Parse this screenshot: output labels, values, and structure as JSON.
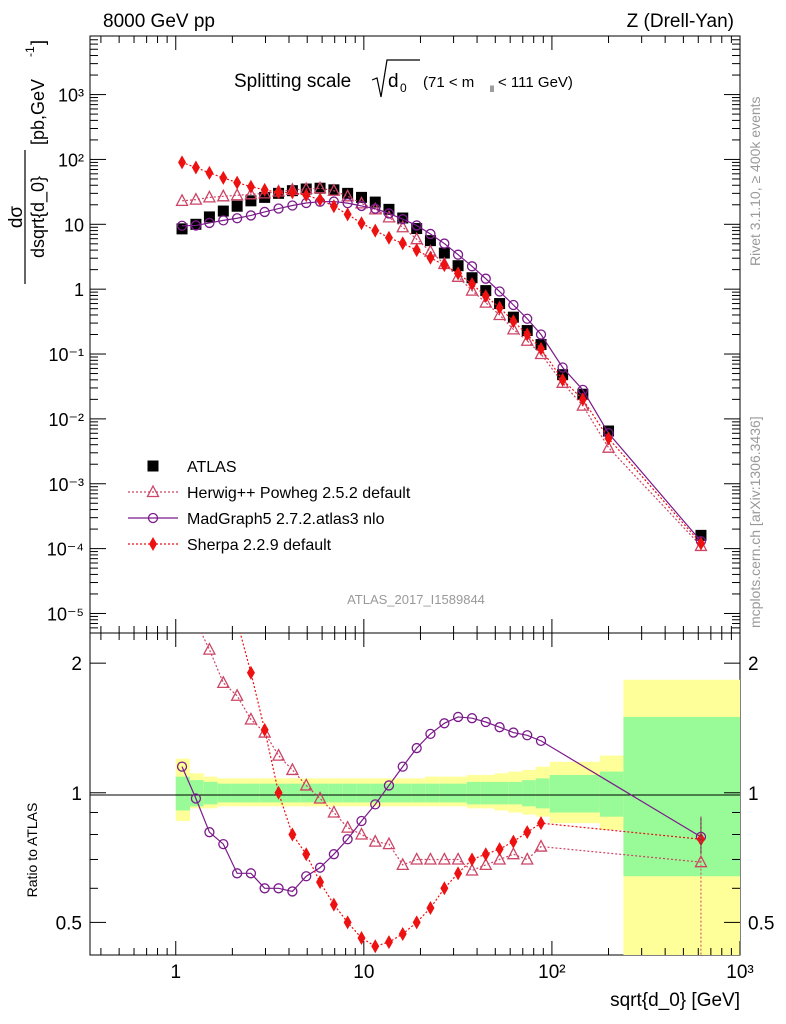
{
  "header": {
    "left": "8000 GeV pp",
    "right": "Z (Drell-Yan)"
  },
  "side": {
    "rivet": "Rivet 3.1.10, ≥ 400k events",
    "mcplots": "mcplots.cern.ch [arXiv:1306.3436]"
  },
  "plot_title": {
    "main": "Splitting scale",
    "sub": "d",
    "sub0": "0",
    "range": "(71 < m",
    "rangesub": "ll",
    "range2": " < 111 GeV)"
  },
  "analysis_id": "ATLAS_2017_I1589844",
  "ylabel_top": {
    "num": "dσ",
    "den": "dsqrt{d_0}",
    "unit": "[pb,GeV",
    "unitsup": "-1",
    "close": "]"
  },
  "ylabel_bottom": "Ratio to ATLAS",
  "xlabel": "sqrt{d_0} [GeV]",
  "legend": [
    {
      "label": "ATLAS",
      "color": "#000000",
      "marker": "square"
    },
    {
      "label": "Herwig++ Powheg 2.5.2 default",
      "color": "#cc4466",
      "marker": "triangle"
    },
    {
      "label": "MadGraph5 2.7.2.atlas3 nlo",
      "color": "#7b1a8a",
      "marker": "circle"
    },
    {
      "label": "Sherpa 2.2.9 default",
      "color": "#ee1111",
      "marker": "diamond"
    }
  ],
  "chart_data": {
    "type": "line",
    "x_scale": "log",
    "y_scale_top": "log",
    "xlim": [
      0.35,
      1000
    ],
    "ylim_top": [
      5e-06,
      8000
    ],
    "ylim_bottom": [
      0.42,
      2.35
    ],
    "x_ticks": [
      "1",
      "10",
      "10²",
      "10³"
    ],
    "y_ticks_top": [
      "10³",
      "10²",
      "10",
      "1",
      "10⁻¹",
      "10⁻²",
      "10⁻³",
      "10⁻⁴",
      "10⁻⁵"
    ],
    "y_ticks_bottom": [
      "0.5",
      "1",
      "2"
    ],
    "x": [
      1.08,
      1.28,
      1.51,
      1.79,
      2.12,
      2.51,
      2.97,
      3.52,
      4.17,
      4.94,
      5.85,
      6.93,
      8.2,
      9.72,
      11.5,
      13.6,
      16.1,
      19.1,
      22.6,
      26.8,
      31.7,
      37.6,
      44.5,
      52.7,
      62.4,
      73.9,
      87.5,
      114,
      146,
      200,
      620
    ],
    "series": [
      {
        "name": "ATLAS",
        "values": [
          8.5,
          10,
          13,
          16,
          19,
          23,
          26,
          30,
          33,
          35,
          36,
          34,
          30,
          26,
          22,
          17,
          12.5,
          8.6,
          5.6,
          3.6,
          2.3,
          1.5,
          0.95,
          0.6,
          0.37,
          0.23,
          0.14,
          0.048,
          0.024,
          0.0065,
          0.00016
        ]
      },
      {
        "name": "Herwig++ Powheg 2.5.2 default",
        "values": [
          23,
          24,
          26,
          27,
          28,
          29,
          30,
          32,
          34,
          35,
          36,
          33,
          27,
          21,
          17,
          12.8,
          9,
          5.9,
          3.8,
          2.45,
          1.55,
          0.95,
          0.62,
          0.4,
          0.24,
          0.16,
          0.1,
          0.036,
          0.016,
          0.0036,
          0.00011
        ]
      },
      {
        "name": "MadGraph5 2.7.2.atlas3 nlo",
        "values": [
          9.5,
          9.6,
          10.5,
          11.5,
          12.4,
          13.7,
          15.5,
          17.5,
          19.5,
          21.3,
          22.3,
          22.4,
          21.2,
          19.2,
          17.4,
          14.7,
          12,
          9.6,
          7.1,
          5.05,
          3.4,
          2.25,
          1.45,
          0.92,
          0.57,
          0.35,
          0.2,
          0.062,
          0.028,
          0.006,
          0.00013
        ]
      },
      {
        "name": "Sherpa 2.2.9 default",
        "values": [
          90,
          75,
          62,
          52,
          44,
          38,
          34,
          31,
          31,
          28,
          24,
          19,
          14.2,
          10.4,
          8,
          6.2,
          5.1,
          4,
          3.05,
          2.35,
          1.75,
          1.2,
          0.78,
          0.52,
          0.32,
          0.2,
          0.12,
          0.04,
          0.02,
          0.005,
          0.00012
        ]
      }
    ],
    "ratio": {
      "x": [
        1.08,
        1.28,
        1.51,
        1.79,
        2.12,
        2.51,
        2.97,
        3.52,
        4.17,
        4.94,
        5.85,
        6.93,
        8.2,
        9.72,
        11.5,
        13.6,
        16.1,
        19.1,
        22.6,
        26.8,
        31.7,
        37.6,
        44.5,
        52.7,
        62.4,
        73.9,
        87.5,
        620
      ],
      "series": [
        {
          "name": "Herwig++ Powheg 2.5.2 default",
          "values": [
            2.7,
            2.5,
            2.15,
            1.8,
            1.68,
            1.48,
            1.38,
            1.22,
            1.13,
            1.04,
            0.97,
            0.9,
            0.83,
            0.8,
            0.77,
            0.76,
            0.68,
            0.7,
            0.7,
            0.7,
            0.7,
            0.66,
            0.68,
            0.7,
            0.72,
            0.7,
            0.75,
            0.69
          ]
        },
        {
          "name": "MadGraph5 2.7.2.atlas3 nlo",
          "values": [
            1.15,
            0.97,
            0.81,
            0.76,
            0.65,
            0.65,
            0.6,
            0.6,
            0.59,
            0.64,
            0.67,
            0.72,
            0.78,
            0.86,
            0.94,
            1.04,
            1.15,
            1.27,
            1.37,
            1.45,
            1.5,
            1.49,
            1.46,
            1.42,
            1.38,
            1.36,
            1.32,
            0.79
          ]
        },
        {
          "name": "Sherpa 2.2.9 default",
          "values": [
            10,
            7.5,
            5,
            3.4,
            2.5,
            1.9,
            1.4,
            1.0,
            0.8,
            0.72,
            0.62,
            0.55,
            0.5,
            0.46,
            0.44,
            0.45,
            0.47,
            0.5,
            0.54,
            0.6,
            0.65,
            0.7,
            0.72,
            0.74,
            0.77,
            0.81,
            0.85,
            0.78
          ]
        }
      ],
      "band_edges": [
        1,
        1.19,
        1.41,
        1.67,
        1.98,
        2.35,
        2.78,
        3.29,
        3.9,
        4.62,
        5.47,
        6.48,
        7.68,
        9.1,
        10.8,
        12.8,
        15.1,
        17.9,
        21.2,
        25.2,
        29.8,
        35.3,
        41.8,
        49.5,
        58.6,
        69.4,
        82.2,
        97.4,
        180,
        240,
        1000
      ],
      "stat_up": [
        1.09,
        1.07,
        1.06,
        1.05,
        1.05,
        1.05,
        1.05,
        1.05,
        1.05,
        1.05,
        1.05,
        1.05,
        1.05,
        1.05,
        1.05,
        1.05,
        1.05,
        1.05,
        1.05,
        1.05,
        1.05,
        1.06,
        1.06,
        1.06,
        1.06,
        1.07,
        1.08,
        1.1,
        1.12,
        1.5
      ],
      "stat_down": [
        0.91,
        0.93,
        0.94,
        0.95,
        0.95,
        0.95,
        0.95,
        0.95,
        0.95,
        0.95,
        0.95,
        0.95,
        0.95,
        0.95,
        0.95,
        0.95,
        0.95,
        0.95,
        0.95,
        0.95,
        0.95,
        0.94,
        0.94,
        0.94,
        0.94,
        0.93,
        0.92,
        0.9,
        0.88,
        0.64
      ],
      "tot_up": [
        1.2,
        1.11,
        1.09,
        1.08,
        1.08,
        1.08,
        1.08,
        1.08,
        1.08,
        1.08,
        1.08,
        1.08,
        1.08,
        1.08,
        1.08,
        1.08,
        1.08,
        1.08,
        1.09,
        1.09,
        1.09,
        1.1,
        1.1,
        1.11,
        1.12,
        1.13,
        1.15,
        1.18,
        1.22,
        1.83
      ],
      "tot_down": [
        0.86,
        0.92,
        0.92,
        0.93,
        0.93,
        0.93,
        0.93,
        0.93,
        0.93,
        0.93,
        0.93,
        0.93,
        0.93,
        0.93,
        0.93,
        0.93,
        0.93,
        0.93,
        0.93,
        0.93,
        0.93,
        0.92,
        0.92,
        0.91,
        0.9,
        0.89,
        0.88,
        0.85,
        0.82,
        0.38
      ]
    }
  },
  "colors": {
    "stat_band": "#98fb98",
    "tot_band": "#ffff99"
  }
}
